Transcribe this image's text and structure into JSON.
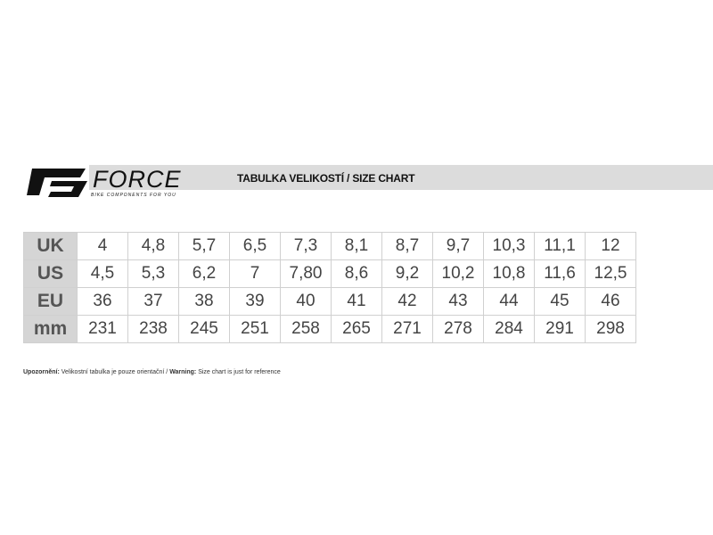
{
  "brand": {
    "name": "FORCE",
    "tagline": "BIKE COMPONENTS FOR YOU"
  },
  "title": "TABULKA VELIKOSTÍ / SIZE CHART",
  "table": {
    "rows": [
      {
        "label": "UK",
        "values": [
          "4",
          "4,8",
          "5,7",
          "6,5",
          "7,3",
          "8,1",
          "8,7",
          "9,7",
          "10,3",
          "11,1",
          "12"
        ]
      },
      {
        "label": "US",
        "values": [
          "4,5",
          "5,3",
          "6,2",
          "7",
          "7,80",
          "8,6",
          "9,2",
          "10,2",
          "10,8",
          "11,6",
          "12,5"
        ]
      },
      {
        "label": "EU",
        "values": [
          "36",
          "37",
          "38",
          "39",
          "40",
          "41",
          "42",
          "43",
          "44",
          "45",
          "46"
        ]
      },
      {
        "label": "mm",
        "values": [
          "231",
          "238",
          "245",
          "251",
          "258",
          "265",
          "271",
          "278",
          "284",
          "291",
          "298"
        ]
      }
    ]
  },
  "note": {
    "cz_label": "Upozornění:",
    "cz_text": " Velikostní tabulka je pouze orientační / ",
    "en_label": "Warning:",
    "en_text": " Size chart is just for reference"
  }
}
